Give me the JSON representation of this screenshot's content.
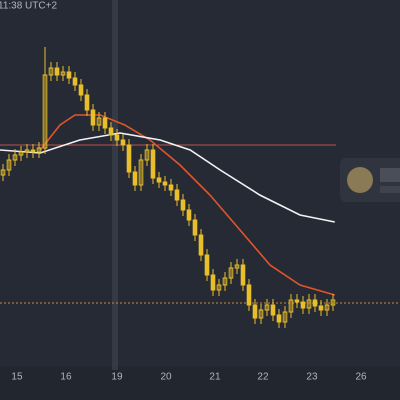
{
  "chart_data": {
    "type": "candlestick",
    "title": "11:38 UTC+2",
    "xlim": [
      -0.5,
      66.17
    ],
    "ylim": [
      0,
      370
    ],
    "xticks": [
      {
        "value": 2.33,
        "label": "15"
      },
      {
        "value": 10.5,
        "label": "16"
      },
      {
        "value": 19,
        "label": "19"
      },
      {
        "value": 27.17,
        "label": "20"
      },
      {
        "value": 35.33,
        "label": "21"
      },
      {
        "value": 43.33,
        "label": "22"
      },
      {
        "value": 51.5,
        "label": "23"
      },
      {
        "value": 59.67,
        "label": "26"
      }
    ],
    "color": "#e8bf2a",
    "open": [
      195,
      200,
      210,
      215,
      218,
      220,
      218,
      222,
      295,
      302,
      295,
      298,
      292,
      285,
      275,
      260,
      245,
      252,
      242,
      235,
      230,
      225,
      198,
      185,
      210,
      220,
      192,
      188,
      185,
      180,
      170,
      160,
      150,
      135,
      115,
      95,
      80,
      85,
      92,
      102,
      105,
      85,
      65,
      52,
      60,
      65,
      55,
      48,
      58,
      70,
      68,
      62,
      70,
      64,
      60,
      65
    ],
    "high": [
      206,
      216,
      221,
      224,
      226,
      226,
      228,
      323,
      308,
      308,
      304,
      304,
      298,
      291,
      281,
      266,
      258,
      258,
      248,
      241,
      236,
      231,
      204,
      216,
      226,
      226,
      198,
      194,
      191,
      186,
      176,
      166,
      156,
      141,
      121,
      101,
      91,
      98,
      108,
      111,
      111,
      91,
      71,
      66,
      71,
      71,
      61,
      64,
      76,
      76,
      74,
      76,
      76,
      70,
      71,
      76
    ],
    "low": [
      189,
      194,
      204,
      209,
      212,
      212,
      212,
      216,
      289,
      289,
      289,
      286,
      279,
      269,
      254,
      239,
      239,
      236,
      229,
      224,
      219,
      192,
      179,
      179,
      204,
      186,
      182,
      179,
      174,
      164,
      154,
      144,
      129,
      109,
      89,
      74,
      74,
      79,
      86,
      96,
      79,
      59,
      46,
      46,
      54,
      49,
      42,
      42,
      52,
      62,
      56,
      56,
      58,
      54,
      54,
      59
    ],
    "close": [
      200,
      210,
      215,
      218,
      220,
      218,
      222,
      295,
      302,
      295,
      298,
      292,
      285,
      275,
      260,
      245,
      252,
      242,
      235,
      230,
      225,
      198,
      185,
      210,
      220,
      192,
      188,
      185,
      180,
      170,
      160,
      150,
      135,
      115,
      95,
      80,
      85,
      92,
      102,
      105,
      85,
      65,
      52,
      60,
      65,
      55,
      48,
      58,
      70,
      68,
      62,
      70,
      64,
      60,
      65,
      70
    ],
    "lines": [
      {
        "color": "#e0552b",
        "x": [
          6.2,
          9.5,
          12,
          16.2,
          20.3,
          24.5,
          29.5,
          34.5,
          39.5,
          44.5,
          49.5,
          55.3
        ],
        "values": [
          220,
          245,
          255,
          255,
          245,
          230,
          205,
          175,
          140,
          105,
          85,
          75
        ]
      },
      {
        "color": "#f2f2f2",
        "x": [
          -0.5,
          6.2,
          12.8,
          19.5,
          26.2,
          31.2,
          36.2,
          42.8,
          49.5,
          55.3
        ],
        "values": [
          220,
          217,
          230,
          237,
          230,
          220,
          200,
          175,
          155,
          148
        ]
      }
    ],
    "hlines": [
      {
        "value": 225,
        "color": "#b85450",
        "dashed": false
      },
      {
        "value": 67,
        "color": "#c98a3a",
        "dashed": true
      }
    ],
    "crosshair_x": 18.67
  }
}
